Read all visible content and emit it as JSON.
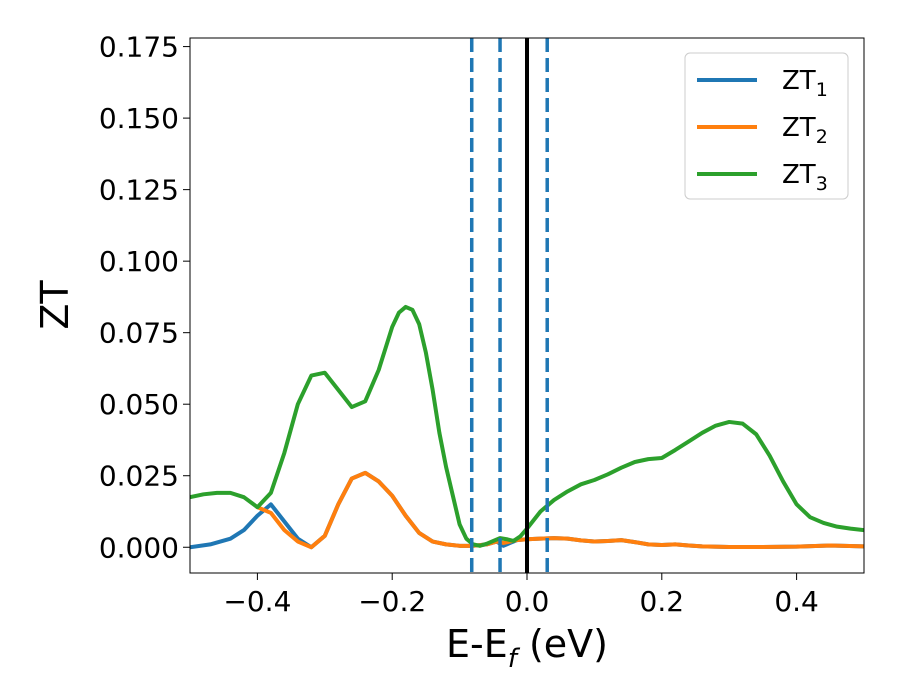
{
  "chart_data": {
    "type": "line",
    "xlabel": "E-E",
    "xlabel_sub": "f",
    "xlabel_unit": " (eV)",
    "ylabel": "ZT",
    "xlim": [
      -0.5,
      0.5
    ],
    "ylim": [
      -0.009,
      0.178
    ],
    "xticks": [
      -0.4,
      -0.2,
      0.0,
      0.2,
      0.4
    ],
    "xtick_labels": [
      "−0.4",
      "−0.2",
      "0.0",
      "0.2",
      "0.4"
    ],
    "yticks": [
      0,
      0.025,
      0.05,
      0.075,
      0.1,
      0.125,
      0.15,
      0.175
    ],
    "ytick_labels": [
      "0.000",
      "0.025",
      "0.050",
      "0.075",
      "0.100",
      "0.125",
      "0.150",
      "0.175"
    ],
    "grid": false,
    "legend_position": "top-right",
    "series": [
      {
        "name": "ZT",
        "name_sub": "1",
        "color": "#1f77b4",
        "x": [
          -0.5,
          -0.47,
          -0.44,
          -0.42,
          -0.4,
          -0.38,
          -0.36,
          -0.34,
          -0.32,
          -0.3,
          -0.28,
          -0.26,
          -0.24,
          -0.22,
          -0.2,
          -0.18,
          -0.16,
          -0.14,
          -0.12,
          -0.1,
          -0.08,
          -0.06,
          -0.045,
          -0.035,
          -0.025,
          -0.015,
          0.0,
          0.02,
          0.04,
          0.06,
          0.08,
          0.1,
          0.12,
          0.14,
          0.16,
          0.18,
          0.2,
          0.22,
          0.24,
          0.26,
          0.3,
          0.35,
          0.4,
          0.45,
          0.5
        ],
        "y": [
          0.0,
          0.001,
          0.003,
          0.006,
          0.011,
          0.015,
          0.009,
          0.003,
          0.0,
          0.004,
          0.015,
          0.024,
          0.026,
          0.023,
          0.018,
          0.011,
          0.005,
          0.002,
          0.001,
          0.0005,
          0.0005,
          0.001,
          0.002,
          0.0005,
          0.0015,
          0.0025,
          0.0028,
          0.003,
          0.0032,
          0.003,
          0.0024,
          0.002,
          0.0022,
          0.0025,
          0.0018,
          0.001,
          0.0008,
          0.001,
          0.0006,
          0.0003,
          0.0001,
          0.0001,
          0.0002,
          0.0006,
          0.0003
        ]
      },
      {
        "name": "ZT",
        "name_sub": "2",
        "color": "#ff7f0e",
        "x": [
          -0.4,
          -0.38,
          -0.36,
          -0.34,
          -0.32,
          -0.3,
          -0.28,
          -0.26,
          -0.24,
          -0.22,
          -0.2,
          -0.18,
          -0.16,
          -0.14,
          -0.12,
          -0.1,
          -0.08,
          -0.06,
          -0.045,
          -0.035,
          -0.025,
          -0.015,
          0.0,
          0.02,
          0.04,
          0.06,
          0.08,
          0.1,
          0.12,
          0.14,
          0.16,
          0.18,
          0.2,
          0.22,
          0.24,
          0.26,
          0.3,
          0.35,
          0.4,
          0.45,
          0.5
        ],
        "y": [
          0.014,
          0.012,
          0.006,
          0.002,
          0.0,
          0.004,
          0.015,
          0.024,
          0.026,
          0.023,
          0.018,
          0.011,
          0.005,
          0.002,
          0.001,
          0.0005,
          0.0005,
          0.001,
          0.002,
          0.0015,
          0.002,
          0.0025,
          0.0028,
          0.003,
          0.0032,
          0.003,
          0.0024,
          0.002,
          0.0022,
          0.0025,
          0.0018,
          0.001,
          0.0008,
          0.001,
          0.0006,
          0.0003,
          0.0001,
          0.0001,
          0.0002,
          0.0006,
          0.0003
        ]
      },
      {
        "name": "ZT",
        "name_sub": "3",
        "color": "#2ca02c",
        "x": [
          -0.5,
          -0.48,
          -0.46,
          -0.44,
          -0.42,
          -0.4,
          -0.38,
          -0.36,
          -0.34,
          -0.32,
          -0.3,
          -0.28,
          -0.26,
          -0.24,
          -0.22,
          -0.2,
          -0.19,
          -0.18,
          -0.17,
          -0.16,
          -0.15,
          -0.14,
          -0.13,
          -0.12,
          -0.11,
          -0.1,
          -0.09,
          -0.08,
          -0.07,
          -0.06,
          -0.05,
          -0.04,
          -0.03,
          -0.02,
          -0.01,
          0.0,
          0.02,
          0.04,
          0.06,
          0.08,
          0.1,
          0.12,
          0.14,
          0.16,
          0.18,
          0.2,
          0.22,
          0.24,
          0.26,
          0.28,
          0.3,
          0.32,
          0.34,
          0.36,
          0.38,
          0.4,
          0.42,
          0.44,
          0.46,
          0.48,
          0.5
        ],
        "y": [
          0.0175,
          0.0185,
          0.019,
          0.019,
          0.0175,
          0.014,
          0.019,
          0.033,
          0.05,
          0.06,
          0.061,
          0.055,
          0.049,
          0.051,
          0.062,
          0.077,
          0.082,
          0.084,
          0.083,
          0.078,
          0.068,
          0.055,
          0.04,
          0.028,
          0.018,
          0.008,
          0.003,
          0.001,
          0.0005,
          0.0012,
          0.0022,
          0.0032,
          0.0028,
          0.0022,
          0.0038,
          0.0065,
          0.0125,
          0.0165,
          0.0195,
          0.022,
          0.0235,
          0.0255,
          0.0278,
          0.0298,
          0.0308,
          0.0312,
          0.034,
          0.037,
          0.04,
          0.0425,
          0.0438,
          0.0432,
          0.0395,
          0.032,
          0.023,
          0.015,
          0.0105,
          0.0085,
          0.0072,
          0.0065,
          0.006
        ]
      }
    ],
    "vlines": [
      {
        "x": -0.082,
        "style": "dashed",
        "color": "#1f77b4"
      },
      {
        "x": -0.04,
        "style": "dashed",
        "color": "#1f77b4"
      },
      {
        "x": 0.0,
        "style": "solid",
        "color": "#000000"
      },
      {
        "x": 0.03,
        "style": "dashed",
        "color": "#1f77b4"
      }
    ]
  }
}
